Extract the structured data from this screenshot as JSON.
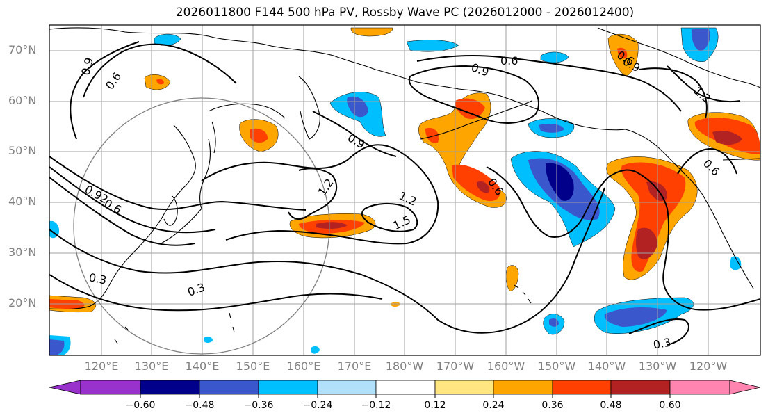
{
  "title": "2026011800 F144 500 hPa PV, Rossby Wave PC (2026012000 - 2026012400)",
  "lat_labels": [
    "70°N",
    "60°N",
    "50°N",
    "40°N",
    "30°N",
    "20°N"
  ],
  "lon_labels": [
    "120°E",
    "130°E",
    "140°E",
    "150°E",
    "160°E",
    "170°E",
    "180°W",
    "170°W",
    "160°W",
    "150°W",
    "140°W",
    "130°W",
    "120°W"
  ],
  "contour_labels": [
    "0.9",
    "0.6",
    "0.6",
    "0.9",
    "1.2",
    "1.2",
    "1.5",
    "0.9",
    "0.6",
    "0.6",
    "0.6",
    "0.9",
    "1.2",
    "0.3",
    "0.3",
    "0.92",
    "0.6",
    "0.3"
  ],
  "colorbar": {
    "ticks": [
      "−0.60",
      "−0.48",
      "−0.36",
      "−0.24",
      "−0.12",
      "0.12",
      "0.24",
      "0.36",
      "0.48",
      "0.60"
    ],
    "colors": [
      "#9932cc",
      "#00008b",
      "#3a57cc",
      "#00bfff",
      "#b0e0fa",
      "#ffffff",
      "#ffe680",
      "#ffa500",
      "#ff4000",
      "#b22222",
      "#ff85b0"
    ]
  },
  "colors": {
    "neg_strong": "#00008b",
    "neg_mid": "#3a57cc",
    "neg_weak": "#00bfff",
    "neg_faint": "#b0e0fa",
    "pos_faint": "#ffe680",
    "pos_weak": "#ffa500",
    "pos_mid": "#ff4000",
    "pos_strong": "#b22222",
    "grid": "#a0a0a0"
  }
}
